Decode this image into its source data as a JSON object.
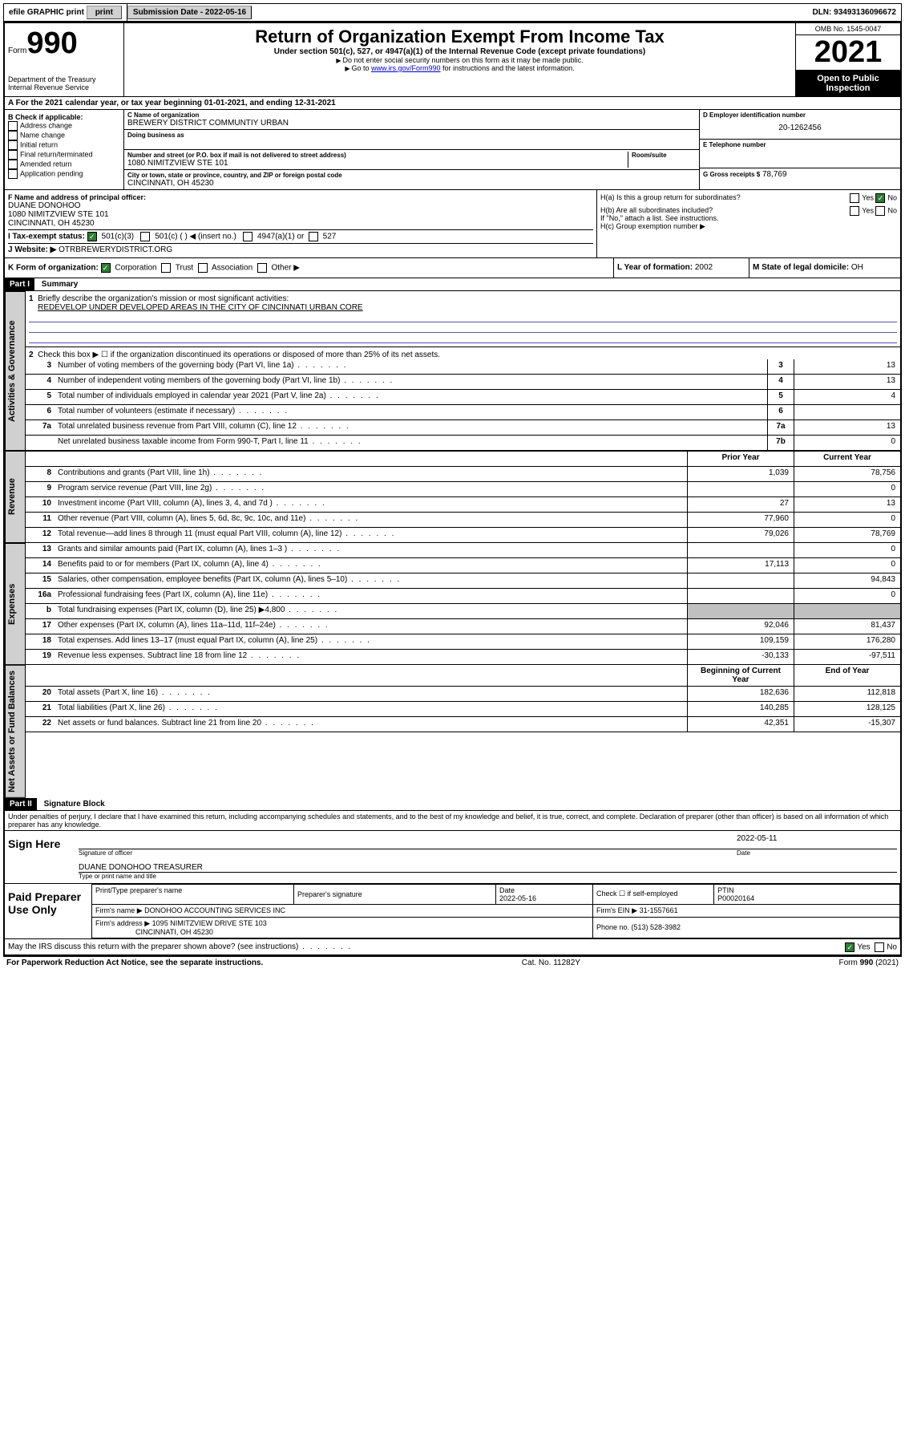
{
  "topbar": {
    "efile": "efile GRAPHIC print",
    "submission_label": "Submission Date - 2022-05-16",
    "dln_label": "DLN: 93493136096672"
  },
  "header": {
    "form_prefix": "Form",
    "form_number": "990",
    "title": "Return of Organization Exempt From Income Tax",
    "subtitle": "Under section 501(c), 527, or 4947(a)(1) of the Internal Revenue Code (except private foundations)",
    "note1": "Do not enter social security numbers on this form as it may be made public.",
    "note2_prefix": "Go to ",
    "note2_link": "www.irs.gov/Form990",
    "note2_suffix": " for instructions and the latest information.",
    "omb": "OMB No. 1545-0047",
    "year": "2021",
    "inspect": "Open to Public Inspection",
    "dept": "Department of the Treasury",
    "irs": "Internal Revenue Service"
  },
  "line_a": {
    "prefix": "A For the 2021 calendar year, or tax year beginning ",
    "begin": "01-01-2021",
    "mid": ", and ending ",
    "end": "12-31-2021"
  },
  "section_b": {
    "label": "B Check if applicable:",
    "opts": [
      "Address change",
      "Name change",
      "Initial return",
      "Final return/terminated",
      "Amended return",
      "Application pending"
    ]
  },
  "section_c": {
    "name_label": "C Name of organization",
    "name": "BREWERY DISTRICT COMMUNTIY URBAN",
    "dba_label": "Doing business as",
    "addr_label": "Number and street (or P.O. box if mail is not delivered to street address)",
    "room_label": "Room/suite",
    "addr": "1080 NIMITZVIEW STE 101",
    "city_label": "City or town, state or province, country, and ZIP or foreign postal code",
    "city": "CINCINNATI, OH  45230"
  },
  "section_d": {
    "label": "D Employer identification number",
    "val": "20-1262456"
  },
  "section_e": {
    "label": "E Telephone number"
  },
  "section_g": {
    "label": "G Gross receipts $",
    "val": "78,769"
  },
  "section_f": {
    "label": "F Name and address of principal officer:",
    "name": "DUANE DONOHOO",
    "addr1": "1080 NIMITZVIEW STE 101",
    "addr2": "CINCINNATI, OH  45230"
  },
  "section_h": {
    "ha": "H(a)  Is this a group return for subordinates?",
    "hb": "H(b)  Are all subordinates included?",
    "hb_note": "If \"No,\" attach a list. See instructions.",
    "hc": "H(c)  Group exemption number ▶",
    "yes": "Yes",
    "no": "No"
  },
  "section_i": {
    "label": "I   Tax-exempt status:",
    "opt1": "501(c)(3)",
    "opt2": "501(c) (  ) ◀ (insert no.)",
    "opt3": "4947(a)(1) or",
    "opt4": "527"
  },
  "section_j": {
    "label": "J   Website: ▶",
    "val": "OTRBREWERYDISTRICT.ORG"
  },
  "section_k": {
    "label": "K Form of organization:",
    "opts": [
      "Corporation",
      "Trust",
      "Association",
      "Other ▶"
    ]
  },
  "section_l": {
    "label": "L Year of formation:",
    "val": "2002"
  },
  "section_m": {
    "label": "M State of legal domicile:",
    "val": "OH"
  },
  "part1": {
    "header": "Part I",
    "title": "Summary",
    "line1_label": "Briefly describe the organization's mission or most significant activities:",
    "mission": "REDEVELOP UNDER DEVELOPED AREAS IN THE CITY OF CINCINNATI URBAN CORE",
    "line2": "Check this box ▶ ☐  if the organization discontinued its operations or disposed of more than 25% of its net assets.",
    "tabs": {
      "gov": "Activities & Governance",
      "rev": "Revenue",
      "exp": "Expenses",
      "net": "Net Assets or Fund Balances"
    },
    "col_prior": "Prior Year",
    "col_curr": "Current Year",
    "col_begin": "Beginning of Current Year",
    "col_end": "End of Year",
    "lines_gov": [
      {
        "n": "3",
        "t": "Number of voting members of the governing body (Part VI, line 1a)",
        "box": "3",
        "v": "13"
      },
      {
        "n": "4",
        "t": "Number of independent voting members of the governing body (Part VI, line 1b)",
        "box": "4",
        "v": "13"
      },
      {
        "n": "5",
        "t": "Total number of individuals employed in calendar year 2021 (Part V, line 2a)",
        "box": "5",
        "v": "4"
      },
      {
        "n": "6",
        "t": "Total number of volunteers (estimate if necessary)",
        "box": "6",
        "v": ""
      },
      {
        "n": "7a",
        "t": "Total unrelated business revenue from Part VIII, column (C), line 12",
        "box": "7a",
        "v": "13"
      },
      {
        "n": "",
        "t": "Net unrelated business taxable income from Form 990-T, Part I, line 11",
        "box": "7b",
        "v": "0"
      }
    ],
    "lines_rev": [
      {
        "n": "8",
        "t": "Contributions and grants (Part VIII, line 1h)",
        "p": "1,039",
        "c": "78,756"
      },
      {
        "n": "9",
        "t": "Program service revenue (Part VIII, line 2g)",
        "p": "",
        "c": "0"
      },
      {
        "n": "10",
        "t": "Investment income (Part VIII, column (A), lines 3, 4, and 7d )",
        "p": "27",
        "c": "13"
      },
      {
        "n": "11",
        "t": "Other revenue (Part VIII, column (A), lines 5, 6d, 8c, 9c, 10c, and 11e)",
        "p": "77,960",
        "c": "0"
      },
      {
        "n": "12",
        "t": "Total revenue—add lines 8 through 11 (must equal Part VIII, column (A), line 12)",
        "p": "79,026",
        "c": "78,769"
      }
    ],
    "lines_exp": [
      {
        "n": "13",
        "t": "Grants and similar amounts paid (Part IX, column (A), lines 1–3 )",
        "p": "",
        "c": "0"
      },
      {
        "n": "14",
        "t": "Benefits paid to or for members (Part IX, column (A), line 4)",
        "p": "17,113",
        "c": "0"
      },
      {
        "n": "15",
        "t": "Salaries, other compensation, employee benefits (Part IX, column (A), lines 5–10)",
        "p": "",
        "c": "94,843"
      },
      {
        "n": "16a",
        "t": "Professional fundraising fees (Part IX, column (A), line 11e)",
        "p": "",
        "c": "0"
      },
      {
        "n": "b",
        "t": "Total fundraising expenses (Part IX, column (D), line 25) ▶4,800",
        "p": "gray",
        "c": "gray"
      },
      {
        "n": "17",
        "t": "Other expenses (Part IX, column (A), lines 11a–11d, 11f–24e)",
        "p": "92,046",
        "c": "81,437"
      },
      {
        "n": "18",
        "t": "Total expenses. Add lines 13–17 (must equal Part IX, column (A), line 25)",
        "p": "109,159",
        "c": "176,280"
      },
      {
        "n": "19",
        "t": "Revenue less expenses. Subtract line 18 from line 12",
        "p": "-30,133",
        "c": "-97,511"
      }
    ],
    "lines_net": [
      {
        "n": "20",
        "t": "Total assets (Part X, line 16)",
        "p": "182,636",
        "c": "112,818"
      },
      {
        "n": "21",
        "t": "Total liabilities (Part X, line 26)",
        "p": "140,285",
        "c": "128,125"
      },
      {
        "n": "22",
        "t": "Net assets or fund balances. Subtract line 21 from line 20",
        "p": "42,351",
        "c": "-15,307"
      }
    ]
  },
  "part2": {
    "header": "Part II",
    "title": "Signature Block",
    "declaration": "Under penalties of perjury, I declare that I have examined this return, including accompanying schedules and statements, and to the best of my knowledge and belief, it is true, correct, and complete. Declaration of preparer (other than officer) is based on all information of which preparer has any knowledge.",
    "sign_here": "Sign Here",
    "sig_officer": "Signature of officer",
    "sig_date": "Date",
    "sig_date_val": "2022-05-11",
    "officer_name": "DUANE DONOHOO TREASURER",
    "name_title": "Type or print name and title",
    "paid_prep": "Paid Preparer Use Only",
    "prep_name_label": "Print/Type preparer's name",
    "prep_sig_label": "Preparer's signature",
    "prep_date_label": "Date",
    "prep_date": "2022-05-16",
    "check_if": "Check ☐ if self-employed",
    "ptin_label": "PTIN",
    "ptin": "P00020164",
    "firm_name_label": "Firm's name   ▶",
    "firm_name": "DONOHOO ACCOUNTING SERVICES INC",
    "firm_ein_label": "Firm's EIN ▶",
    "firm_ein": "31-1557661",
    "firm_addr_label": "Firm's address ▶",
    "firm_addr1": "1095 NIMITZVIEW DRIVE STE 103",
    "firm_addr2": "CINCINNATI, OH  45230",
    "phone_label": "Phone no.",
    "phone": "(513) 528-3982",
    "discuss": "May the IRS discuss this return with the preparer shown above? (see instructions)",
    "yes": "Yes",
    "no": "No"
  },
  "footer": {
    "left": "For Paperwork Reduction Act Notice, see the separate instructions.",
    "mid": "Cat. No. 11282Y",
    "right": "Form 990 (2021)"
  }
}
